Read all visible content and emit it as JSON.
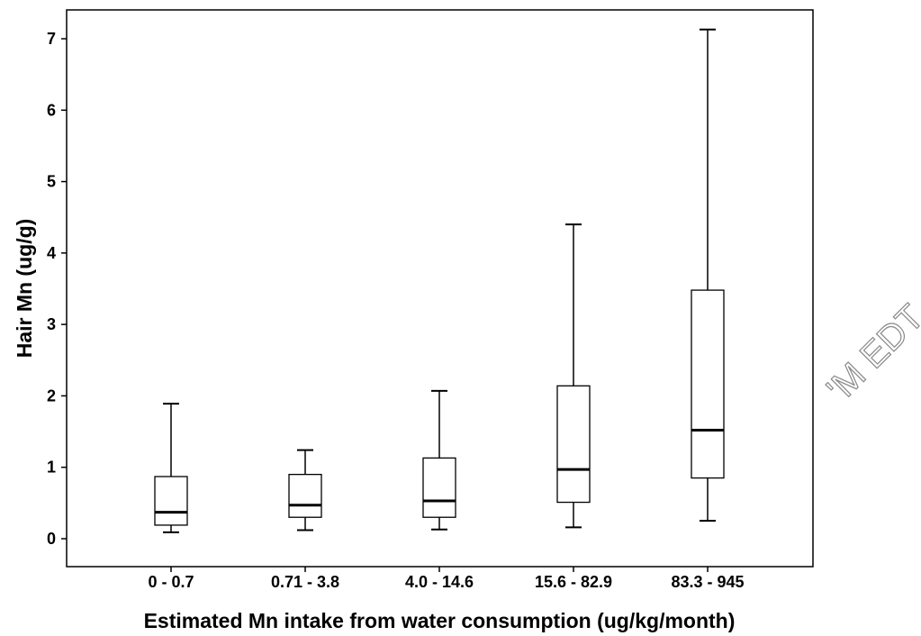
{
  "chart_data": {
    "type": "box",
    "title": "",
    "xlabel": "Estimated Mn intake from water consumption (ug/kg/month)",
    "ylabel": "Hair Mn (ug/g)",
    "ylim": [
      -0.4,
      7.4
    ],
    "yticks": [
      0,
      1,
      2,
      3,
      4,
      5,
      6,
      7
    ],
    "grid": false,
    "categories": [
      "0 - 0.7",
      "0.71 - 3.8",
      "4.0 - 14.6",
      "15.6 - 82.9",
      "83.3 - 945"
    ],
    "boxes": [
      {
        "category": "0 - 0.7",
        "min": 0.09,
        "q1": 0.19,
        "median": 0.37,
        "q3": 0.87,
        "max": 1.89
      },
      {
        "category": "0.71 - 3.8",
        "min": 0.12,
        "q1": 0.3,
        "median": 0.47,
        "q3": 0.9,
        "max": 1.24
      },
      {
        "category": "4.0 - 14.6",
        "min": 0.13,
        "q1": 0.3,
        "median": 0.53,
        "q3": 1.13,
        "max": 2.07
      },
      {
        "category": "15.6 - 82.9",
        "min": 0.16,
        "q1": 0.51,
        "median": 0.97,
        "q3": 2.14,
        "max": 4.4
      },
      {
        "category": "83.3 - 945",
        "min": 0.25,
        "q1": 0.85,
        "median": 1.52,
        "q3": 3.48,
        "max": 7.13
      }
    ]
  },
  "watermark": {
    "text": "'M EDT"
  }
}
